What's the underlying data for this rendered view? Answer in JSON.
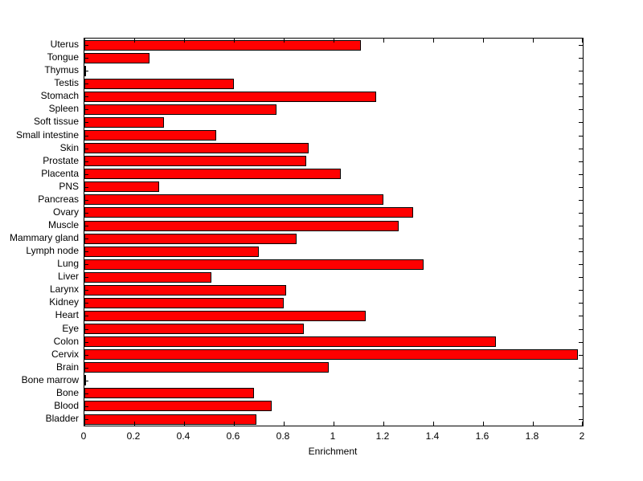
{
  "chart_data": {
    "type": "bar",
    "orientation": "horizontal",
    "title": "",
    "xlabel": "Enrichment",
    "ylabel": "",
    "xlim": [
      0,
      2
    ],
    "xticks": [
      0,
      0.2,
      0.4,
      0.6,
      0.8,
      1,
      1.2,
      1.4,
      1.6,
      1.8,
      2
    ],
    "xtick_labels": [
      "0",
      "0.2",
      "0.4",
      "0.6",
      "0.8",
      "1",
      "1.2",
      "1.4",
      "1.6",
      "1.8",
      "2"
    ],
    "grid": false,
    "legend": "none",
    "bar_color": "#ff0000",
    "bar_edge_color": "#000000",
    "categories": [
      "Uterus",
      "Tongue",
      "Thymus",
      "Testis",
      "Stomach",
      "Spleen",
      "Soft tissue",
      "Small intestine",
      "Skin",
      "Prostate",
      "Placenta",
      "PNS",
      "Pancreas",
      "Ovary",
      "Muscle",
      "Mammary gland",
      "Lymph node",
      "Lung",
      "Liver",
      "Larynx",
      "Kidney",
      "Heart",
      "Eye",
      "Colon",
      "Cervix",
      "Brain",
      "Bone marrow",
      "Bone",
      "Blood",
      "Bladder"
    ],
    "values": [
      1.11,
      0.26,
      0,
      0.6,
      1.17,
      0.77,
      0.32,
      0.53,
      0.9,
      0.89,
      1.03,
      0.3,
      1.2,
      1.32,
      1.26,
      0.85,
      0.7,
      1.36,
      0.51,
      0.81,
      0.8,
      1.13,
      0.88,
      1.65,
      1.98,
      0.98,
      0,
      0.68,
      0.75,
      0.69
    ]
  }
}
